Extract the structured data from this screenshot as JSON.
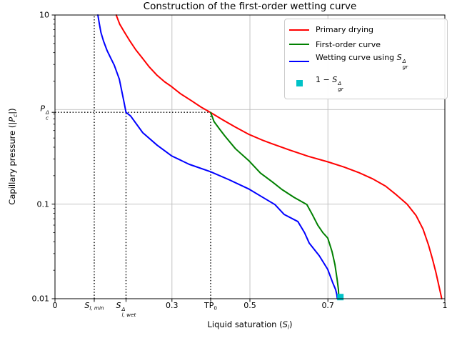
{
  "chart_data": {
    "type": "line",
    "title": "Construction of the first-order wetting curve",
    "xlabel_parts": [
      {
        "t": "Liquid saturation ("
      },
      {
        "t": "S",
        "i": true
      },
      {
        "t": "l",
        "i": true,
        "sub": true
      },
      {
        "t": ")"
      }
    ],
    "ylabel_parts": [
      {
        "t": "Capillary pressure (|"
      },
      {
        "t": "P",
        "i": true
      },
      {
        "t": "c",
        "i": true,
        "sub": true
      },
      {
        "t": "|)"
      }
    ],
    "x_axis": {
      "scale": "linear",
      "min": 0,
      "max": 1
    },
    "y_axis": {
      "scale": "log",
      "min": 0.01,
      "max": 10
    },
    "grid": {
      "x_values": [
        0.3,
        0.5,
        0.7,
        1.0
      ],
      "y_values": [
        0.1,
        1
      ],
      "color": "#bdbdbd"
    },
    "x_ticks": [
      {
        "v": 0,
        "parts": [
          {
            "t": "0"
          }
        ]
      },
      {
        "v": 0.1007,
        "parts": [
          {
            "t": "S",
            "i": true
          },
          {
            "t": "l, min",
            "i": true,
            "sub": true
          }
        ]
      },
      {
        "v": 0.1822,
        "parts": [
          {
            "t": "S",
            "i": true
          },
          {
            "stack": {
              "sup": "Δ",
              "sub": "l, wet"
            },
            "i": true
          }
        ]
      },
      {
        "v": 0.3,
        "parts": [
          {
            "t": "0.3"
          }
        ]
      },
      {
        "v": 0.3993,
        "parts": [
          {
            "t": "TP"
          },
          {
            "t": "0",
            "sub": true
          }
        ]
      },
      {
        "v": 0.5,
        "parts": [
          {
            "t": "0.5"
          }
        ]
      },
      {
        "v": 0.7,
        "parts": [
          {
            "t": "0.7"
          }
        ]
      },
      {
        "v": 1,
        "parts": [
          {
            "t": "1"
          }
        ]
      }
    ],
    "y_ticks": [
      {
        "v": 10,
        "parts": [
          {
            "t": "10"
          }
        ]
      },
      {
        "v": 0.935,
        "parts": [
          {
            "t": "P",
            "i": true
          },
          {
            "stack": {
              "sup": "Δ",
              "sub": "c"
            },
            "i": true
          }
        ]
      },
      {
        "v": 0.1,
        "parts": [
          {
            "t": "0.1"
          }
        ]
      },
      {
        "v": 0.01,
        "parts": [
          {
            "t": "0.01"
          }
        ]
      }
    ],
    "y_minor_tick_subs": [
      2,
      3,
      4,
      5,
      6,
      7,
      8,
      9
    ],
    "series": [
      {
        "name": "Primary drying",
        "color": "#ff0000",
        "points": [
          [
            0.157,
            10
          ],
          [
            0.166,
            8.0
          ],
          [
            0.178,
            6.6
          ],
          [
            0.191,
            5.4
          ],
          [
            0.207,
            4.3
          ],
          [
            0.223,
            3.55
          ],
          [
            0.241,
            2.85
          ],
          [
            0.261,
            2.32
          ],
          [
            0.281,
            1.97
          ],
          [
            0.298,
            1.76
          ],
          [
            0.322,
            1.47
          ],
          [
            0.35,
            1.24
          ],
          [
            0.375,
            1.06
          ],
          [
            0.3993,
            0.93
          ],
          [
            0.43,
            0.78
          ],
          [
            0.462,
            0.655
          ],
          [
            0.498,
            0.545
          ],
          [
            0.531,
            0.477
          ],
          [
            0.562,
            0.427
          ],
          [
            0.601,
            0.374
          ],
          [
            0.65,
            0.32
          ],
          [
            0.7,
            0.28
          ],
          [
            0.741,
            0.247
          ],
          [
            0.78,
            0.215
          ],
          [
            0.815,
            0.185
          ],
          [
            0.848,
            0.155
          ],
          [
            0.876,
            0.125
          ],
          [
            0.903,
            0.1
          ],
          [
            0.926,
            0.076
          ],
          [
            0.944,
            0.0545
          ],
          [
            0.958,
            0.037
          ],
          [
            0.968,
            0.0265
          ],
          [
            0.977,
            0.019
          ],
          [
            0.984,
            0.0141
          ],
          [
            0.989,
            0.0114
          ],
          [
            0.992,
            0.01
          ]
        ]
      },
      {
        "name": "First-order curve",
        "color": "#008000",
        "points": [
          [
            0.3993,
            0.93
          ],
          [
            0.408,
            0.745
          ],
          [
            0.423,
            0.615
          ],
          [
            0.436,
            0.524
          ],
          [
            0.463,
            0.385
          ],
          [
            0.498,
            0.286
          ],
          [
            0.527,
            0.213
          ],
          [
            0.559,
            0.17
          ],
          [
            0.582,
            0.143
          ],
          [
            0.613,
            0.118
          ],
          [
            0.646,
            0.099
          ],
          [
            0.66,
            0.0777
          ],
          [
            0.674,
            0.06
          ],
          [
            0.687,
            0.05
          ],
          [
            0.6996,
            0.0438
          ],
          [
            0.7106,
            0.0315
          ],
          [
            0.718,
            0.023
          ],
          [
            0.7234,
            0.0163
          ],
          [
            0.727,
            0.0125
          ],
          [
            0.7282,
            0.01
          ]
        ]
      },
      {
        "name": "Wetting curve using S_gr^Δ",
        "color": "#0000ff",
        "points": [
          [
            0.11,
            10
          ],
          [
            0.1135,
            8.2
          ],
          [
            0.118,
            6.5
          ],
          [
            0.1245,
            5.3
          ],
          [
            0.1337,
            4.2
          ],
          [
            0.143,
            3.5
          ],
          [
            0.152,
            2.95
          ],
          [
            0.165,
            2.1
          ],
          [
            0.176,
            1.26
          ],
          [
            0.1822,
            0.935
          ],
          [
            0.194,
            0.855
          ],
          [
            0.225,
            0.57
          ],
          [
            0.262,
            0.42
          ],
          [
            0.299,
            0.324
          ],
          [
            0.344,
            0.264
          ],
          [
            0.399,
            0.22
          ],
          [
            0.448,
            0.18
          ],
          [
            0.498,
            0.144
          ],
          [
            0.53,
            0.12
          ],
          [
            0.564,
            0.099
          ],
          [
            0.588,
            0.0777
          ],
          [
            0.623,
            0.0654
          ],
          [
            0.64,
            0.05
          ],
          [
            0.652,
            0.0388
          ],
          [
            0.678,
            0.0284
          ],
          [
            0.6996,
            0.0204
          ],
          [
            0.712,
            0.0149
          ],
          [
            0.7198,
            0.0125
          ],
          [
            0.723,
            0.011
          ],
          [
            0.7242,
            0.01
          ]
        ]
      }
    ],
    "marker": {
      "name": "1 − S_gr^Δ",
      "shape": "square",
      "color": "#00c2c7",
      "s": 0.732,
      "p": 0.0104,
      "size": 9
    },
    "construction_lines": [
      {
        "orient": "v",
        "s": 0.1007,
        "p_from": 0.01,
        "p_to": 10
      },
      {
        "orient": "v",
        "s": 0.1822,
        "p_from": 0.01,
        "p_to": 0.935
      },
      {
        "orient": "v",
        "s": 0.3993,
        "p_from": 0.01,
        "p_to": 0.935
      },
      {
        "orient": "h",
        "p": 0.935,
        "s_from": 0,
        "s_to": 0.3993
      }
    ],
    "legend_position": "upper right"
  },
  "legend": {
    "items": [
      {
        "type": "line",
        "color": "#ff0000",
        "parts": [
          {
            "t": "Primary drying"
          }
        ]
      },
      {
        "type": "line",
        "color": "#008000",
        "parts": [
          {
            "t": "First-order curve"
          }
        ]
      },
      {
        "type": "line",
        "color": "#0000ff",
        "parts": [
          {
            "t": "Wetting curve using "
          },
          {
            "t": "S",
            "i": true
          },
          {
            "stack": {
              "sup": "Δ",
              "sub": "gr"
            },
            "i": true
          }
        ]
      },
      {
        "type": "square",
        "color": "#00c2c7",
        "parts": [
          {
            "t": "1 − "
          },
          {
            "t": "S",
            "i": true
          },
          {
            "stack": {
              "sup": "Δ",
              "sub": "gr"
            },
            "i": true
          }
        ]
      }
    ]
  },
  "colors": {
    "spine": "#000000",
    "grid": "#bdbdbd",
    "dotted": "#000000",
    "background": "#ffffff",
    "primary_drying": "#ff0000",
    "first_order": "#008000",
    "wetting": "#0000ff",
    "marker": "#00c2c7"
  }
}
